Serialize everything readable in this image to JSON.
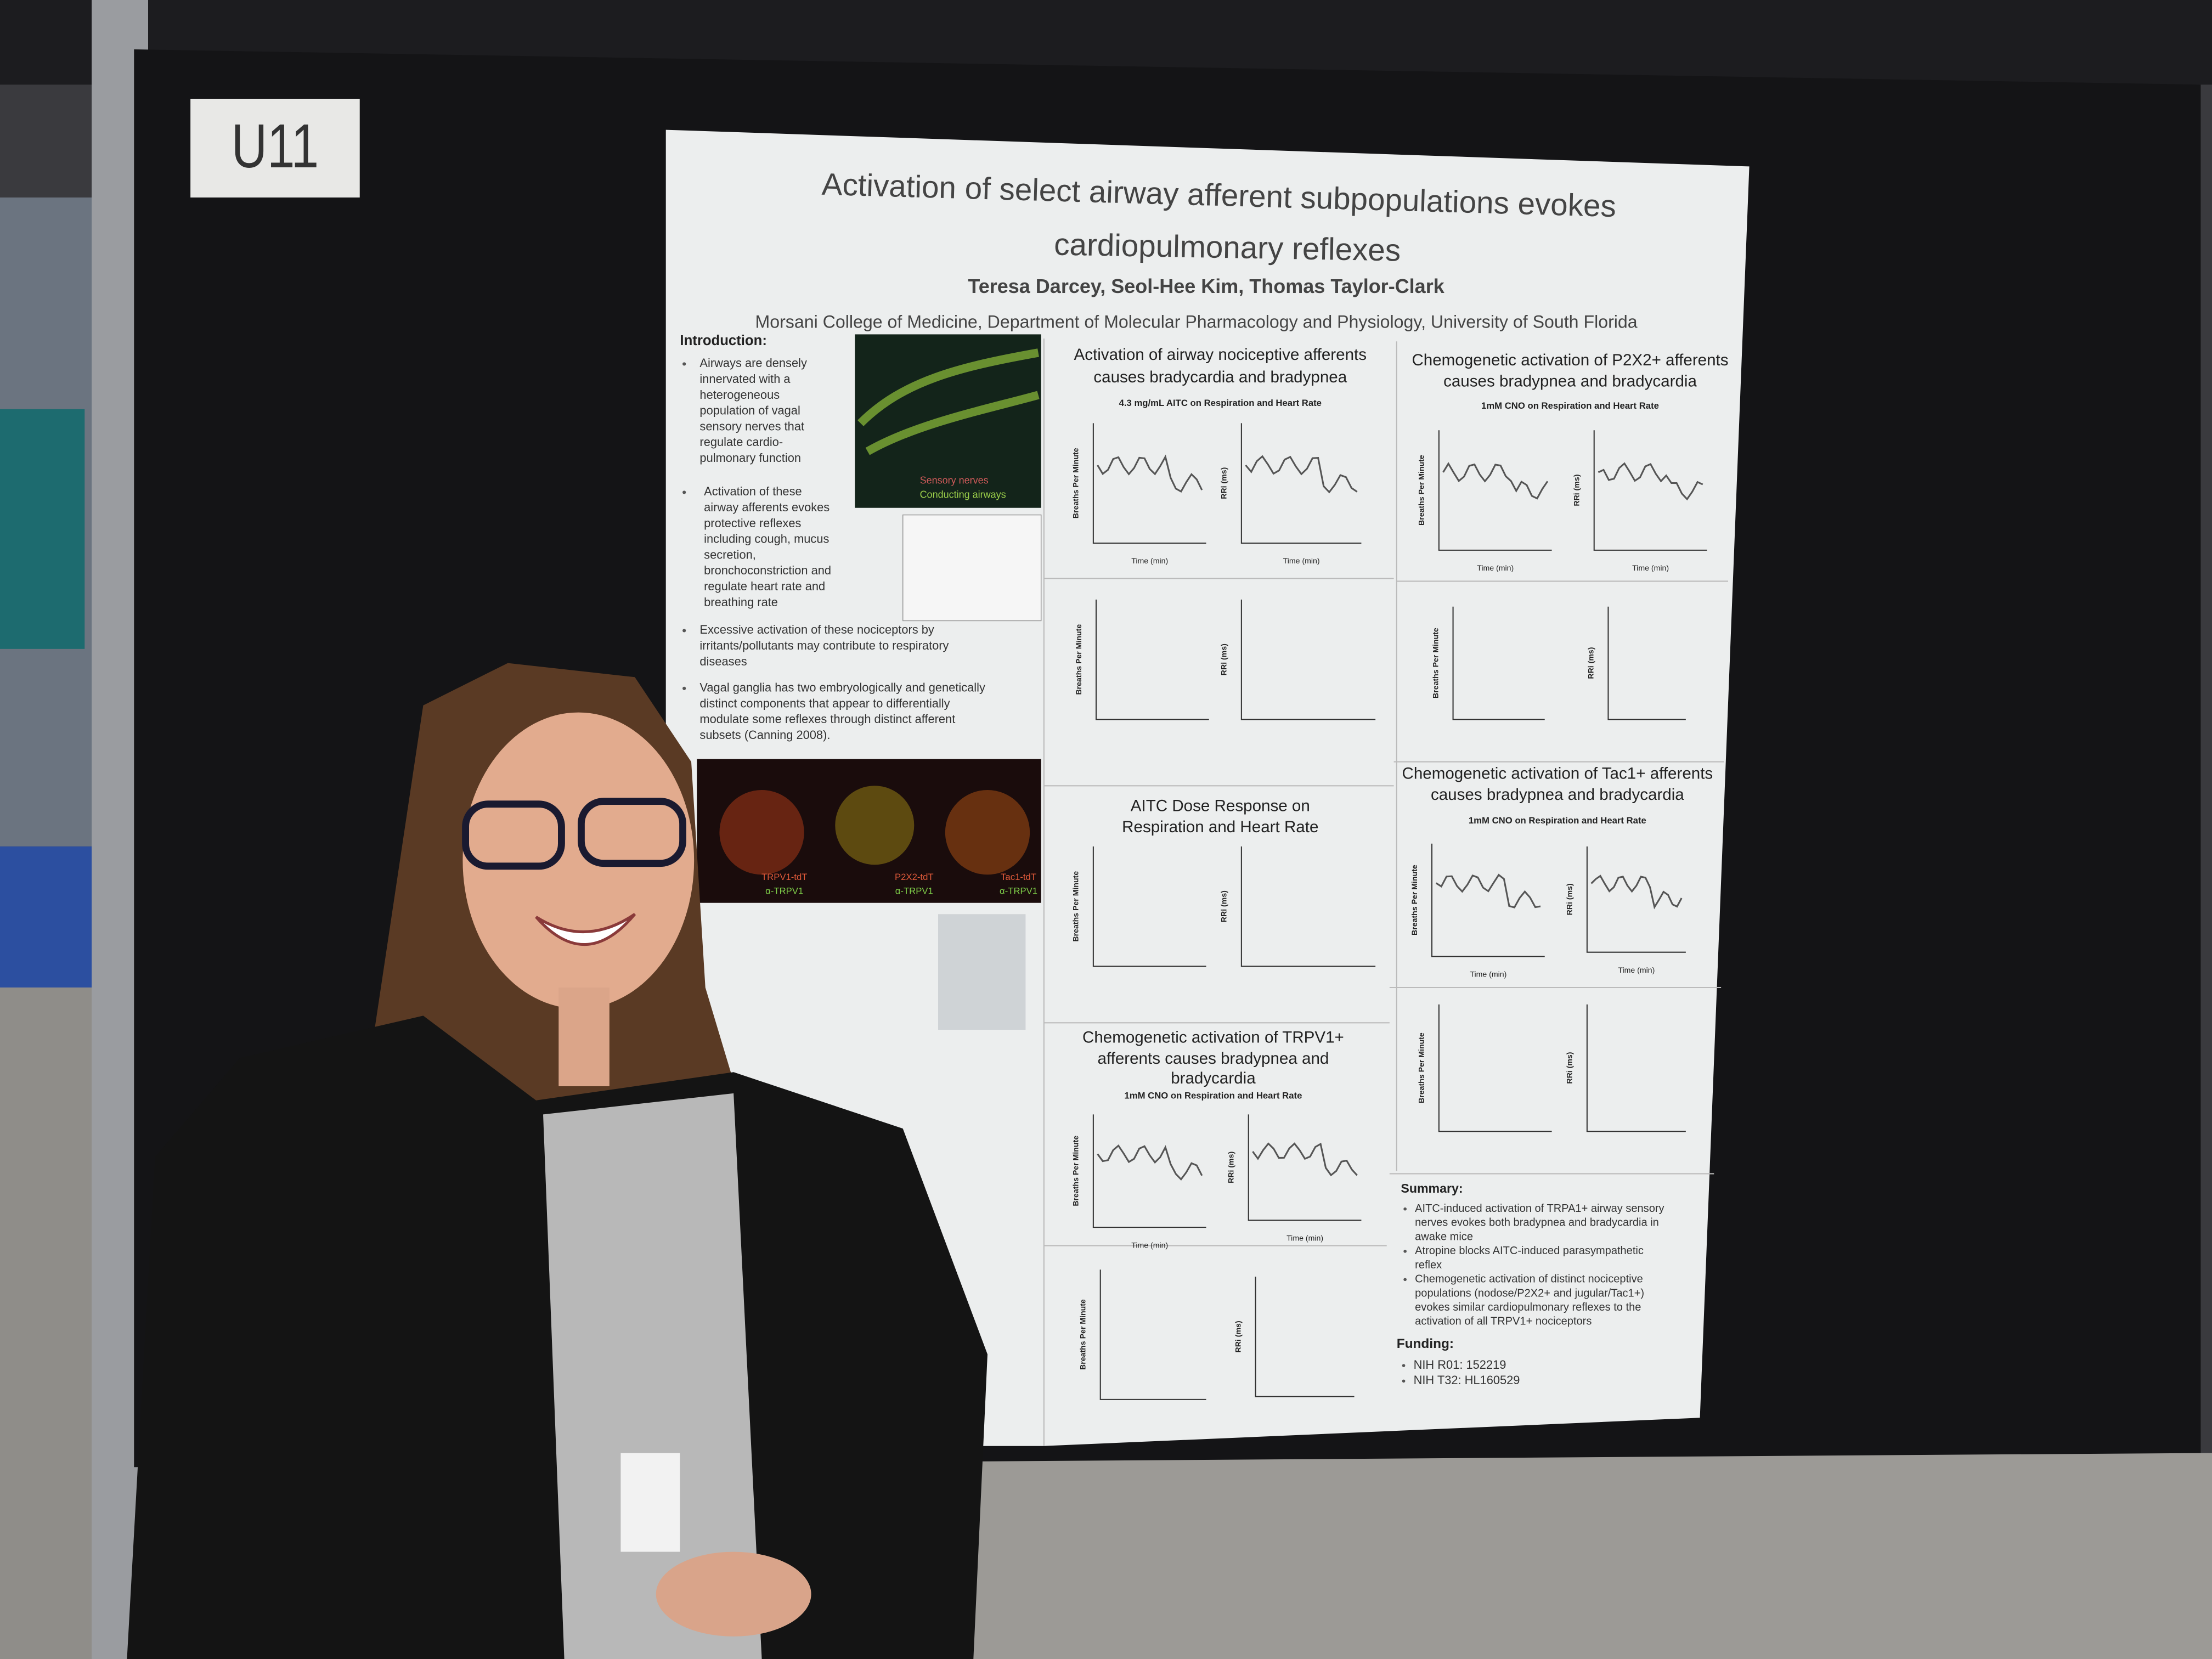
{
  "board_label": "U11",
  "poster": {
    "title": [
      "Activation of select airway afferent subpopulations evokes",
      "cardiopulmonary reflexes"
    ],
    "authors": "Teresa Darcey, Seol-Hee Kim, Thomas Taylor-Clark",
    "affiliation": "Morsani College of Medicine, Department of Molecular Pharmacology and Physiology, University of South Florida",
    "introduction": {
      "heading": "Introduction:",
      "bullets": [
        [
          "Airways are densely",
          "innervated with a",
          "heterogeneous",
          "population of vagal",
          "sensory nerves that",
          "regulate cardio-",
          "pulmonary function"
        ],
        [
          "Activation of these",
          "airway afferents evokes",
          "protective reflexes",
          "including cough, mucus",
          "secretion,",
          "bronchoconstriction and",
          "regulate heart rate and",
          "breathing rate"
        ],
        [
          "Excessive activation of these nociceptors by",
          "irritants/pollutants may contribute to respiratory",
          "diseases"
        ],
        [
          "Vagal ganglia has two embryologically and genetically",
          "distinct components that appear to differentially",
          "modulate some reflexes through distinct afferent",
          "subsets (Canning 2008)."
        ]
      ]
    },
    "image_labels": [
      "Sensory nerves",
      "Conducting airways"
    ],
    "ganglia_labels": [
      "TRPV1-tdT",
      "α-TRPV1",
      "P2X2-tdT",
      "α-TRPV1",
      "Tac1-tdT",
      "α-TRPV1"
    ],
    "axis_labels": [
      "Breaths Per Minute",
      "RRi (ms)",
      "Time (min)"
    ],
    "panels": [
      {
        "title": [
          "Activation of airway nociceptive afferents",
          "causes bradycardia and bradypnea"
        ],
        "subtitle": "4.3 mg/mL AITC on Respiration and Heart Rate"
      },
      {
        "title": [
          "AITC Dose Response on",
          "Respiration and Heart Rate"
        ]
      },
      {
        "title": [
          "Chemogenetic activation of TRPV1+",
          "afferents causes bradypnea and",
          "bradycardia"
        ],
        "subtitle": "1mM CNO on Respiration and Heart Rate"
      },
      {
        "title": [
          "Chemogenetic activation of P2X2+ afferents",
          "causes bradypnea and bradycardia"
        ],
        "subtitle": "1mM CNO on Respiration and Heart Rate"
      },
      {
        "title": [
          "Chemogenetic activation of Tac1+ afferents",
          "causes bradypnea and bradycardia"
        ],
        "subtitle": "1mM CNO on Respiration and Heart Rate"
      }
    ],
    "summary": {
      "heading": "Summary:",
      "bullets": [
        [
          "AITC-induced activation of TRPA1+ airway sensory",
          "nerves evokes both bradypnea and bradycardia in",
          "awake mice"
        ],
        [
          "Atropine blocks AITC-induced parasympathetic",
          "reflex"
        ],
        [
          "Chemogenetic activation of distinct nociceptive",
          "populations (nodose/P2X2+ and jugular/Tac1+)",
          "evokes similar cardiopulmonary reflexes to the",
          "activation of all TRPV1+ nociceptors"
        ]
      ]
    },
    "funding": {
      "heading": "Funding:",
      "items": [
        "NIH R01: 152219",
        "NIH T32: HL160529"
      ]
    }
  }
}
